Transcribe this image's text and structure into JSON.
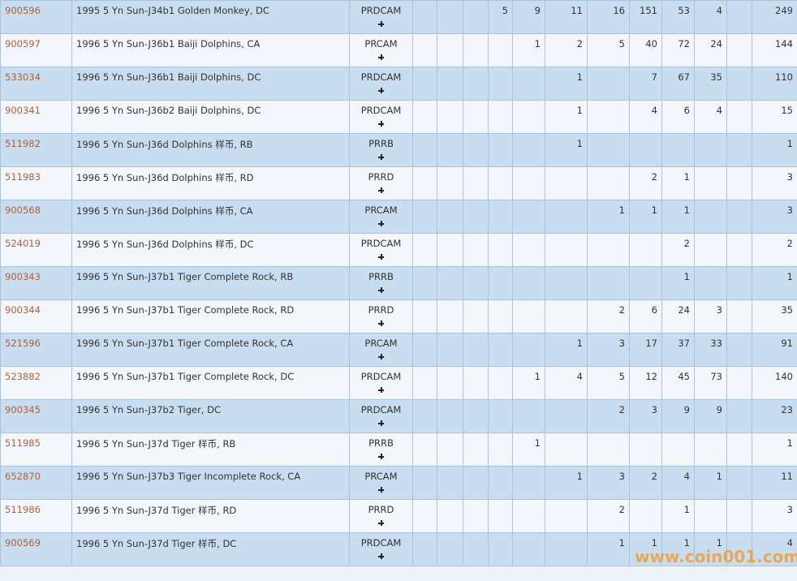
{
  "table": {
    "rows": [
      {
        "id": "900596",
        "description": "1995 5 Yn Sun-J34b1 Golden Monkey, DC",
        "designation": "PRDCAM",
        "counts": [
          null,
          null,
          null,
          5,
          9,
          11,
          16,
          151,
          53,
          4,
          null
        ],
        "total": 249
      },
      {
        "id": "900597",
        "description": "1996 5 Yn Sun-J36b1 Baiji Dolphins, CA",
        "designation": "PRCAM",
        "counts": [
          null,
          null,
          null,
          null,
          1,
          2,
          5,
          40,
          72,
          24,
          null
        ],
        "total": 144
      },
      {
        "id": "533034",
        "description": "1996 5 Yn Sun-J36b1 Baiji Dolphins, DC",
        "designation": "PRDCAM",
        "counts": [
          null,
          null,
          null,
          null,
          null,
          1,
          null,
          7,
          67,
          35,
          null
        ],
        "total": 110
      },
      {
        "id": "900341",
        "description": "1996 5 Yn Sun-J36b2 Baiji Dolphins, DC",
        "designation": "PRDCAM",
        "counts": [
          null,
          null,
          null,
          null,
          null,
          1,
          null,
          4,
          6,
          4,
          null
        ],
        "total": 15
      },
      {
        "id": "511982",
        "description": "1996 5 Yn Sun-J36d Dolphins 样币, RB",
        "designation": "PRRB",
        "counts": [
          null,
          null,
          null,
          null,
          null,
          1,
          null,
          null,
          null,
          null,
          null
        ],
        "total": 1
      },
      {
        "id": "511983",
        "description": "1996 5 Yn Sun-J36d Dolphins 样币, RD",
        "designation": "PRRD",
        "counts": [
          null,
          null,
          null,
          null,
          null,
          null,
          null,
          2,
          1,
          null,
          null
        ],
        "total": 3
      },
      {
        "id": "900568",
        "description": "1996 5 Yn Sun-J36d Dolphins 样币, CA",
        "designation": "PRCAM",
        "counts": [
          null,
          null,
          null,
          null,
          null,
          null,
          1,
          1,
          1,
          null,
          null
        ],
        "total": 3
      },
      {
        "id": "524019",
        "description": "1996 5 Yn Sun-J36d Dolphins 样币, DC",
        "designation": "PRDCAM",
        "counts": [
          null,
          null,
          null,
          null,
          null,
          null,
          null,
          null,
          2,
          null,
          null
        ],
        "total": 2
      },
      {
        "id": "900343",
        "description": "1996 5 Yn Sun-J37b1 Tiger Complete Rock, RB",
        "designation": "PRRB",
        "counts": [
          null,
          null,
          null,
          null,
          null,
          null,
          null,
          null,
          1,
          null,
          null
        ],
        "total": 1
      },
      {
        "id": "900344",
        "description": "1996 5 Yn Sun-J37b1 Tiger Complete Rock, RD",
        "designation": "PRRD",
        "counts": [
          null,
          null,
          null,
          null,
          null,
          null,
          2,
          6,
          24,
          3,
          null
        ],
        "total": 35
      },
      {
        "id": "521596",
        "description": "1996 5 Yn Sun-J37b1 Tiger Complete Rock, CA",
        "designation": "PRCAM",
        "counts": [
          null,
          null,
          null,
          null,
          null,
          1,
          3,
          17,
          37,
          33,
          null
        ],
        "total": 91
      },
      {
        "id": "523882",
        "description": "1996 5 Yn Sun-J37b1 Tiger Complete Rock, DC",
        "designation": "PRDCAM",
        "counts": [
          null,
          null,
          null,
          null,
          1,
          4,
          5,
          12,
          45,
          73,
          null
        ],
        "total": 140
      },
      {
        "id": "900345",
        "description": "1996 5 Yn Sun-J37b2 Tiger, DC",
        "designation": "PRDCAM",
        "counts": [
          null,
          null,
          null,
          null,
          null,
          null,
          2,
          3,
          9,
          9,
          null
        ],
        "total": 23
      },
      {
        "id": "511985",
        "description": "1996 5 Yn Sun-J37d Tiger 样币, RB",
        "designation": "PRRB",
        "counts": [
          null,
          null,
          null,
          null,
          1,
          null,
          null,
          null,
          null,
          null,
          null
        ],
        "total": 1
      },
      {
        "id": "652870",
        "description": "1996 5 Yn Sun-J37b3 Tiger Incomplete Rock, CA",
        "designation": "PRCAM",
        "counts": [
          null,
          null,
          null,
          null,
          null,
          1,
          3,
          2,
          4,
          1,
          null
        ],
        "total": 11
      },
      {
        "id": "511986",
        "description": "1996 5 Yn Sun-J37d Tiger 样币, RD",
        "designation": "PRRD",
        "counts": [
          null,
          null,
          null,
          null,
          null,
          null,
          2,
          null,
          1,
          null,
          null
        ],
        "total": 3
      },
      {
        "id": "900569",
        "description": "1996 5 Yn Sun-J37d Tiger 样币, DC",
        "designation": "PRDCAM",
        "counts": [
          null,
          null,
          null,
          null,
          null,
          null,
          1,
          1,
          1,
          1,
          null
        ],
        "total": 4
      }
    ]
  },
  "watermark": "www.coin001.com"
}
